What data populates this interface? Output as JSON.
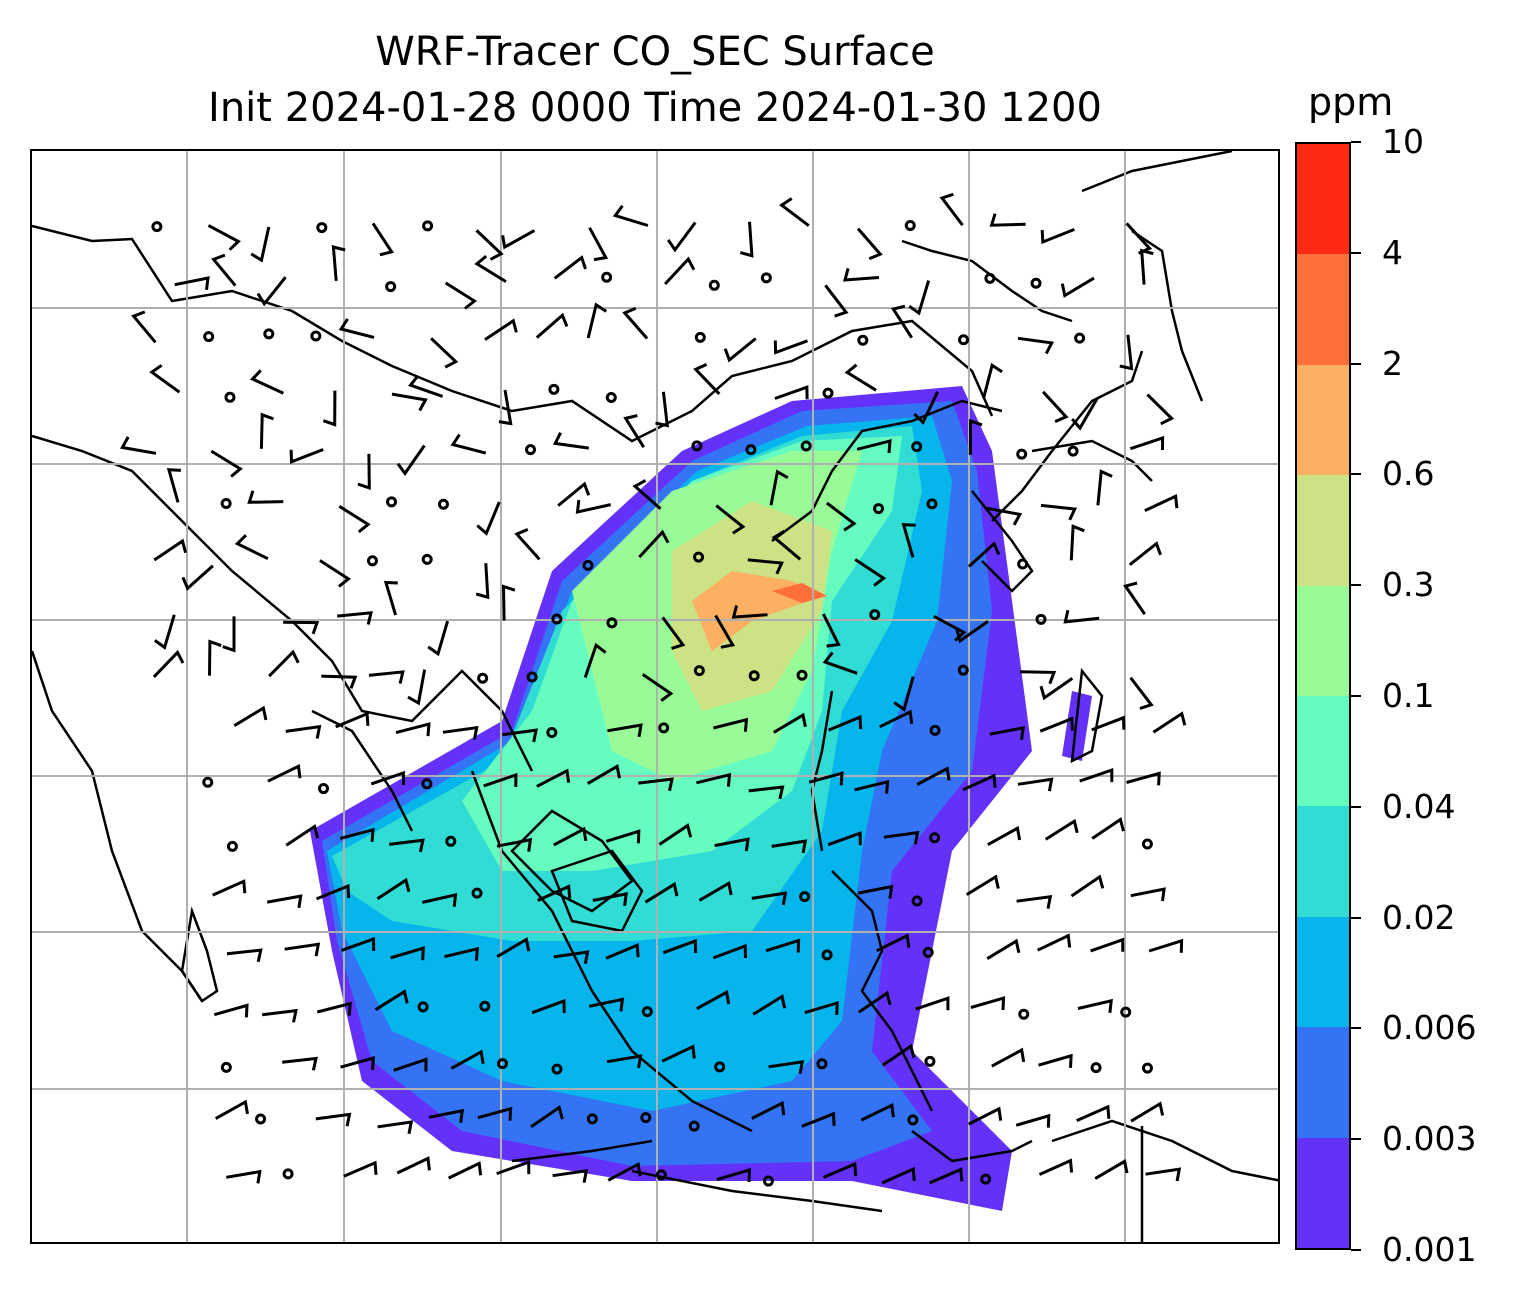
{
  "title": {
    "line1": "WRF-Tracer CO_SEC Surface",
    "line2": "Init 2024-01-28 0000 Time 2024-01-30 1200"
  },
  "colorbar": {
    "unit": "ppm",
    "ticks": [
      "0.001",
      "0.003",
      "0.006",
      "0.02",
      "0.04",
      "0.1",
      "0.3",
      "0.6",
      "2",
      "4",
      "10"
    ],
    "colors": [
      "#6431f9",
      "#3474f4",
      "#05b5ec",
      "#30dcd4",
      "#66fcc0",
      "#98fb98",
      "#cde185",
      "#fdaf62",
      "#fe6f3c",
      "#fe2a16"
    ]
  },
  "map": {
    "region": "East / Southeast Asia",
    "gridlines": true
  }
}
